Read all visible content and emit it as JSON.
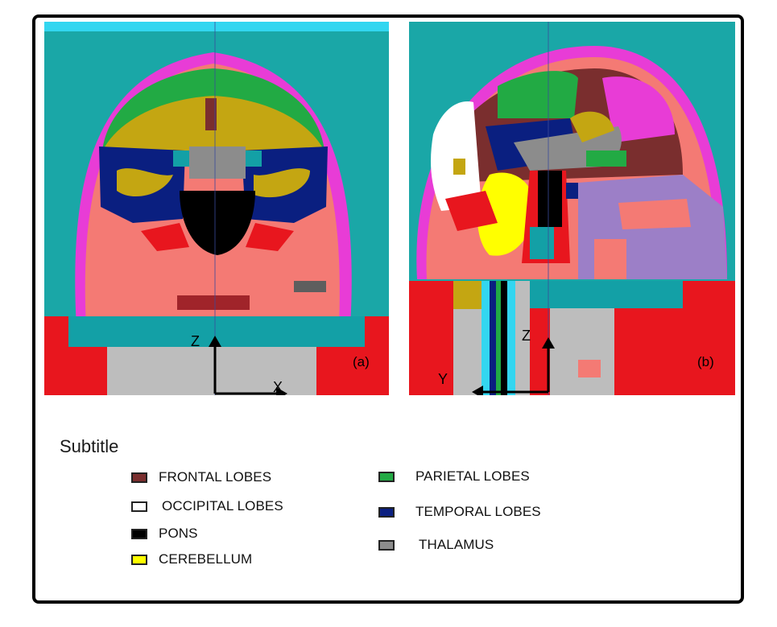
{
  "panels": {
    "a": {
      "label": "(a)",
      "axes": {
        "vertical": "Z",
        "horizontal": "X"
      }
    },
    "b": {
      "label": "(b)",
      "axes": {
        "vertical": "Z",
        "horizontal": "Y"
      }
    }
  },
  "legend": {
    "title": "Subtitle",
    "items": [
      {
        "key": "frontal",
        "label": "FRONTAL LOBES",
        "color": "#7a2e2e"
      },
      {
        "key": "occipital",
        "label": "OCCIPITAL LOBES",
        "color": "#ffffff"
      },
      {
        "key": "pons",
        "label": "PONS",
        "color": "#000000"
      },
      {
        "key": "cerebellum",
        "label": "CEREBELLUM",
        "color": "#ffff00"
      },
      {
        "key": "parietal",
        "label": "PARIETAL LOBES",
        "color": "#22aa44"
      },
      {
        "key": "temporal",
        "label": "TEMPORAL LOBES",
        "color": "#0a1f80"
      },
      {
        "key": "thalamus",
        "label": "THALAMUS",
        "color": "#8c8c8c"
      }
    ]
  },
  "colors": {
    "background_tissue": "#1aa7a7",
    "skin": "#e83cd6",
    "skin_outer": "#33d6f0",
    "soft_tissue": "#f47a74",
    "gray_matter": "#c4a612",
    "bone_red": "#e8161e",
    "support_gray": "#bdbdbd",
    "teal_block": "#13a0a6"
  }
}
